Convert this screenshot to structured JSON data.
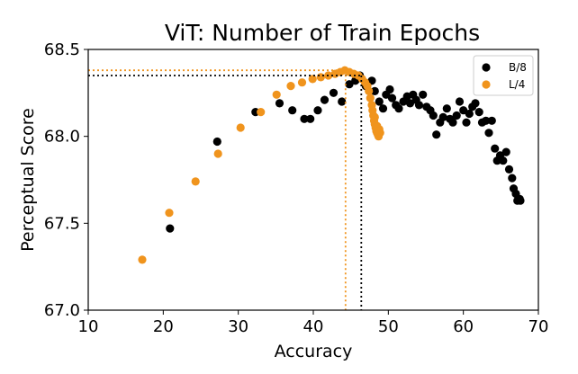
{
  "chart_data": {
    "type": "scatter",
    "title": "ViT: Number of Train Epochs",
    "xlabel": "Accuracy",
    "ylabel": "Perceptual Score",
    "xlim": [
      10,
      70
    ],
    "ylim": [
      67.0,
      68.5
    ],
    "xticks": [
      "10",
      "20",
      "30",
      "40",
      "50",
      "60",
      "70"
    ],
    "yticks": [
      "67.0",
      "67.5",
      "68.0",
      "68.5"
    ],
    "grid": false,
    "legend_position": "top-right",
    "series": [
      {
        "name": "B/8",
        "color": "#000000",
        "marker_x": 46.4,
        "marker_y": 68.35,
        "points": [
          [
            20.9,
            67.47
          ],
          [
            27.2,
            67.97
          ],
          [
            32.3,
            68.14
          ],
          [
            35.5,
            68.19
          ],
          [
            37.2,
            68.15
          ],
          [
            38.8,
            68.1
          ],
          [
            39.6,
            68.1
          ],
          [
            40.6,
            68.15
          ],
          [
            41.5,
            68.21
          ],
          [
            42.7,
            68.25
          ],
          [
            43.8,
            68.2
          ],
          [
            44.8,
            68.3
          ],
          [
            45.6,
            68.32
          ],
          [
            46.2,
            68.35
          ],
          [
            47.0,
            68.29
          ],
          [
            47.8,
            68.32
          ],
          [
            48.2,
            68.26
          ],
          [
            48.8,
            68.2
          ],
          [
            49.3,
            68.16
          ],
          [
            49.7,
            68.24
          ],
          [
            50.2,
            68.27
          ],
          [
            50.5,
            68.22
          ],
          [
            51.0,
            68.18
          ],
          [
            51.4,
            68.16
          ],
          [
            52.0,
            68.2
          ],
          [
            52.5,
            68.23
          ],
          [
            52.9,
            68.19
          ],
          [
            53.3,
            68.24
          ],
          [
            53.7,
            68.21
          ],
          [
            54.1,
            68.18
          ],
          [
            54.6,
            68.24
          ],
          [
            55.1,
            68.17
          ],
          [
            55.6,
            68.15
          ],
          [
            56.0,
            68.12
          ],
          [
            56.4,
            68.01
          ],
          [
            56.9,
            68.08
          ],
          [
            57.3,
            68.11
          ],
          [
            57.8,
            68.16
          ],
          [
            58.2,
            68.1
          ],
          [
            58.6,
            68.08
          ],
          [
            59.1,
            68.12
          ],
          [
            59.5,
            68.2
          ],
          [
            60.0,
            68.15
          ],
          [
            60.4,
            68.08
          ],
          [
            60.8,
            68.13
          ],
          [
            61.2,
            68.17
          ],
          [
            61.6,
            68.19
          ],
          [
            62.1,
            68.14
          ],
          [
            62.5,
            68.08
          ],
          [
            63.0,
            68.09
          ],
          [
            63.4,
            68.02
          ],
          [
            63.8,
            68.09
          ],
          [
            64.2,
            67.93
          ],
          [
            64.5,
            67.86
          ],
          [
            64.9,
            67.89
          ],
          [
            65.3,
            67.86
          ],
          [
            65.7,
            67.91
          ],
          [
            66.1,
            67.81
          ],
          [
            66.5,
            67.76
          ],
          [
            66.7,
            67.7
          ],
          [
            67.0,
            67.67
          ],
          [
            67.2,
            67.63
          ],
          [
            67.5,
            67.64
          ],
          [
            67.6,
            67.63
          ]
        ]
      },
      {
        "name": "L/4",
        "color": "#f0941d",
        "marker_x": 44.3,
        "marker_y": 68.38,
        "points": [
          [
            17.2,
            67.29
          ],
          [
            20.8,
            67.56
          ],
          [
            24.3,
            67.74
          ],
          [
            27.3,
            67.9
          ],
          [
            30.3,
            68.05
          ],
          [
            33.0,
            68.14
          ],
          [
            35.1,
            68.24
          ],
          [
            37.0,
            68.29
          ],
          [
            38.5,
            68.31
          ],
          [
            39.9,
            68.33
          ],
          [
            41.0,
            68.34
          ],
          [
            42.0,
            68.35
          ],
          [
            42.9,
            68.36
          ],
          [
            43.6,
            68.37
          ],
          [
            44.2,
            68.38
          ],
          [
            44.8,
            68.37
          ],
          [
            45.4,
            68.36
          ],
          [
            46.0,
            68.35
          ],
          [
            46.5,
            68.33
          ],
          [
            46.9,
            68.31
          ],
          [
            47.2,
            68.29
          ],
          [
            47.4,
            68.26
          ],
          [
            47.6,
            68.22
          ],
          [
            47.8,
            68.18
          ],
          [
            47.9,
            68.15
          ],
          [
            48.0,
            68.12
          ],
          [
            48.1,
            68.09
          ],
          [
            48.2,
            68.07
          ],
          [
            48.3,
            68.05
          ],
          [
            48.4,
            68.03
          ],
          [
            48.5,
            68.02
          ],
          [
            48.6,
            68.01
          ],
          [
            48.7,
            68.0
          ],
          [
            48.8,
            68.04
          ],
          [
            48.9,
            68.02
          ],
          [
            48.2,
            68.11
          ],
          [
            48.5,
            68.06
          ],
          [
            48.7,
            68.03
          ]
        ]
      }
    ]
  }
}
